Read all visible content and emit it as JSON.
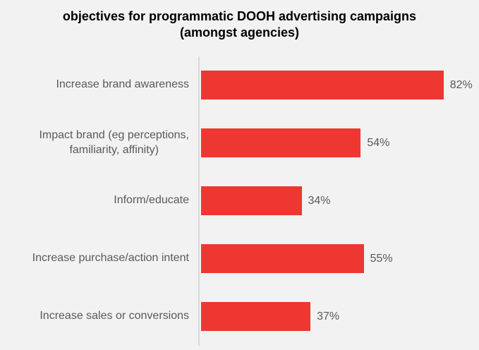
{
  "chart_data": {
    "type": "bar",
    "orientation": "horizontal",
    "title": "objectives for programmatic DOOH advertising campaigns",
    "subtitle": "(amongst agencies)",
    "categories": [
      "Increase brand awareness",
      "Impact brand (eg perceptions,\nfamiliarity, affinity)",
      "Inform/educate",
      "Increase purchase/action intent",
      "Increase sales or conversions"
    ],
    "values": [
      82,
      54,
      34,
      55,
      37
    ],
    "value_labels": [
      "82%",
      "54%",
      "34%",
      "55%",
      "37%"
    ],
    "xlabel": "",
    "ylabel": "",
    "xlim": [
      0,
      94
    ],
    "grid": false,
    "legend": false,
    "data_labels_position": "outside-end"
  },
  "colors": {
    "bar": "#ee3731",
    "background": "#f2f2f2",
    "label_text": "#595959",
    "title_text": "#000000",
    "axis_line": "#d9d9d9"
  }
}
